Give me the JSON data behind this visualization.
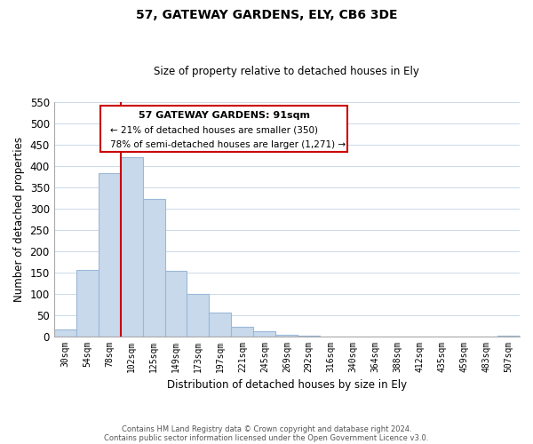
{
  "title": "57, GATEWAY GARDENS, ELY, CB6 3DE",
  "subtitle": "Size of property relative to detached houses in Ely",
  "xlabel": "Distribution of detached houses by size in Ely",
  "ylabel": "Number of detached properties",
  "categories": [
    "30sqm",
    "54sqm",
    "78sqm",
    "102sqm",
    "125sqm",
    "149sqm",
    "173sqm",
    "197sqm",
    "221sqm",
    "245sqm",
    "269sqm",
    "292sqm",
    "316sqm",
    "340sqm",
    "364sqm",
    "388sqm",
    "412sqm",
    "435sqm",
    "459sqm",
    "483sqm",
    "507sqm"
  ],
  "values": [
    15,
    155,
    383,
    420,
    323,
    153,
    100,
    55,
    22,
    12,
    4,
    1,
    0,
    0,
    0,
    0,
    0,
    0,
    0,
    0,
    1
  ],
  "bar_color": "#c8d9ec",
  "bar_edge_color": "#9ab8d8",
  "vline_color": "#cc0000",
  "vline_x_idx": 2.5,
  "ylim": [
    0,
    550
  ],
  "yticks": [
    0,
    50,
    100,
    150,
    200,
    250,
    300,
    350,
    400,
    450,
    500,
    550
  ],
  "annotation_title": "57 GATEWAY GARDENS: 91sqm",
  "annotation_line1": "← 21% of detached houses are smaller (350)",
  "annotation_line2": "78% of semi-detached houses are larger (1,271) →",
  "footer_line1": "Contains HM Land Registry data © Crown copyright and database right 2024.",
  "footer_line2": "Contains public sector information licensed under the Open Government Licence v3.0.",
  "background_color": "#ffffff",
  "grid_color": "#ccd9e8"
}
